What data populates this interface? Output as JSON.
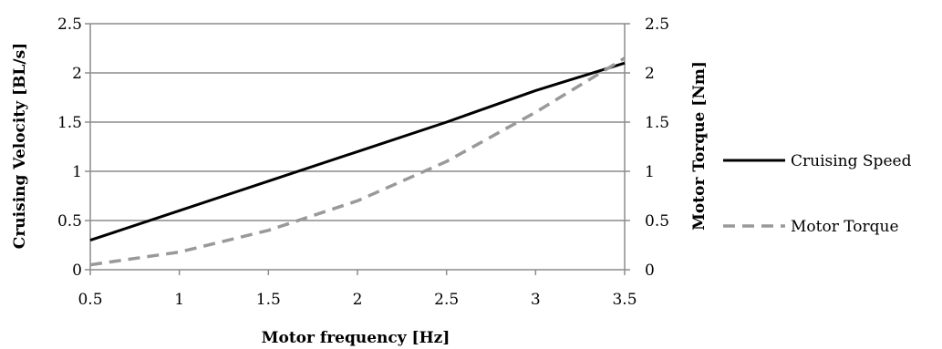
{
  "chart_data": {
    "type": "line",
    "xlabel": "Motor frequency [Hz]",
    "ylabel": "Cruising Velocity [BL/s]",
    "y2label": "Motor Torque [Nm]",
    "xlim": [
      0.5,
      3.5
    ],
    "ylim": [
      0,
      2.5
    ],
    "y2lim": [
      0,
      2.5
    ],
    "xticks": [
      "0.5",
      "1",
      "1.5",
      "2",
      "2.5",
      "3",
      "3.5"
    ],
    "yticks": [
      "0",
      "0.5",
      "1",
      "1.5",
      "2",
      "2.5"
    ],
    "y2ticks": [
      "0",
      "0.5",
      "1",
      "1.5",
      "2",
      "2.5"
    ],
    "grid": true,
    "legend_position": "right",
    "series": [
      {
        "name": "Cruising Speed",
        "axis": "left",
        "color": "#000000",
        "style": "solid",
        "x": [
          0.5,
          1.0,
          1.5,
          2.0,
          2.5,
          3.0,
          3.5
        ],
        "y": [
          0.3,
          0.6,
          0.9,
          1.2,
          1.5,
          1.82,
          2.1
        ]
      },
      {
        "name": "Motor Torque",
        "axis": "right",
        "color": "#999999",
        "style": "dashed",
        "x": [
          0.5,
          1.0,
          1.5,
          2.0,
          2.5,
          3.0,
          3.5
        ],
        "y": [
          0.05,
          0.18,
          0.4,
          0.7,
          1.1,
          1.6,
          2.15
        ]
      }
    ]
  }
}
